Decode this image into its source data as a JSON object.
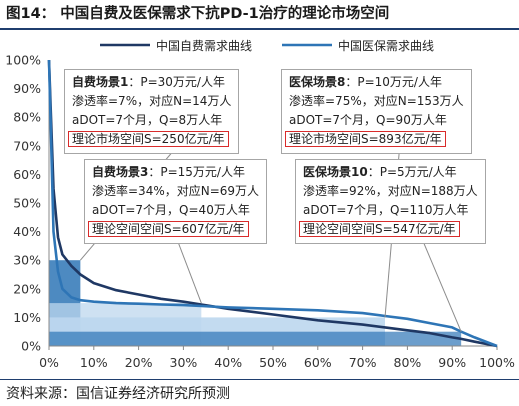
{
  "figure": {
    "title": "图14： 中国自费及医保需求下抗PD-1治疗的理论市场空间",
    "source": "资料来源：国信证券经济研究所预测"
  },
  "colors": {
    "self_pay_line": "#1f3864",
    "insurance_line": "#2e75b6",
    "rect_dark": "#2e75b6",
    "rect_light": "#bdd7ee",
    "highlight_border": "#d92b2b",
    "title_rule": "#1f3e6e"
  },
  "notes": {
    "s1": {
      "name": "自费场景1",
      "l1": "：P=30万元/人年",
      "l2": "渗透率=7%，对应N=14万人",
      "l3": "aDOT=7个月，Q=8万人年",
      "l4": "理论市场空间S=250亿元/年"
    },
    "s3": {
      "name": "自费场景3",
      "l1": "：P=15万元/人年",
      "l2": "渗透率=34%，对应N=69万人",
      "l3": "aDOT=7个月，Q=40万人年",
      "l4": "理论空间空间S=607亿元/年"
    },
    "s8": {
      "name": "医保场景8",
      "l1": "：P=10万元/人年",
      "l2": "渗透率=75%，对应N=153万人",
      "l3": "aDOT=7个月，Q=90万人年",
      "l4": "理论市场空间S=893亿元/年"
    },
    "s10": {
      "name": "医保场景10",
      "l1": "：P=5万元/人年",
      "l2": "渗透率=92%，对应N=188万人",
      "l3": "aDOT=7个月，Q=110万人年",
      "l4": "理论空间空间S=547亿元/年"
    }
  },
  "chart_data": {
    "type": "line",
    "x": [
      0,
      1,
      2,
      3,
      5,
      7,
      10,
      15,
      20,
      25,
      30,
      34,
      40,
      50,
      60,
      70,
      75,
      80,
      85,
      90,
      92,
      95,
      100
    ],
    "series": [
      {
        "name": "中国自费需求曲线",
        "values": [
          100,
          55,
          38,
          32,
          28,
          25,
          22,
          19.5,
          18,
          16.5,
          15.5,
          14.5,
          13,
          11,
          9,
          7.5,
          6.5,
          5.5,
          4.5,
          3,
          2.5,
          1.5,
          0
        ]
      },
      {
        "name": "中国医保需求曲线",
        "values": [
          100,
          40,
          26,
          20,
          17,
          16,
          15.5,
          15,
          14.8,
          14.5,
          14.3,
          14,
          13.5,
          13,
          12.5,
          11.5,
          10.5,
          9.5,
          8,
          6.5,
          5,
          3,
          0
        ]
      }
    ],
    "scenario_rects": [
      {
        "name": "自费场景1",
        "penetration": 7,
        "price_pct": 30
      },
      {
        "name": "自费场景3",
        "penetration": 34,
        "price_pct": 15
      },
      {
        "name": "医保场景8",
        "penetration": 75,
        "price_pct": 10
      },
      {
        "name": "医保场景10",
        "penetration": 92,
        "price_pct": 5
      }
    ],
    "x_ticks": [
      "0%",
      "10%",
      "20%",
      "30%",
      "40%",
      "50%",
      "60%",
      "70%",
      "80%",
      "90%",
      "100%"
    ],
    "y_ticks": [
      "0%",
      "10%",
      "20%",
      "30%",
      "40%",
      "50%",
      "60%",
      "70%",
      "80%",
      "90%",
      "100%"
    ],
    "xlim": [
      0,
      100
    ],
    "ylim": [
      0,
      100
    ],
    "legend_position": "top",
    "grid": false
  }
}
